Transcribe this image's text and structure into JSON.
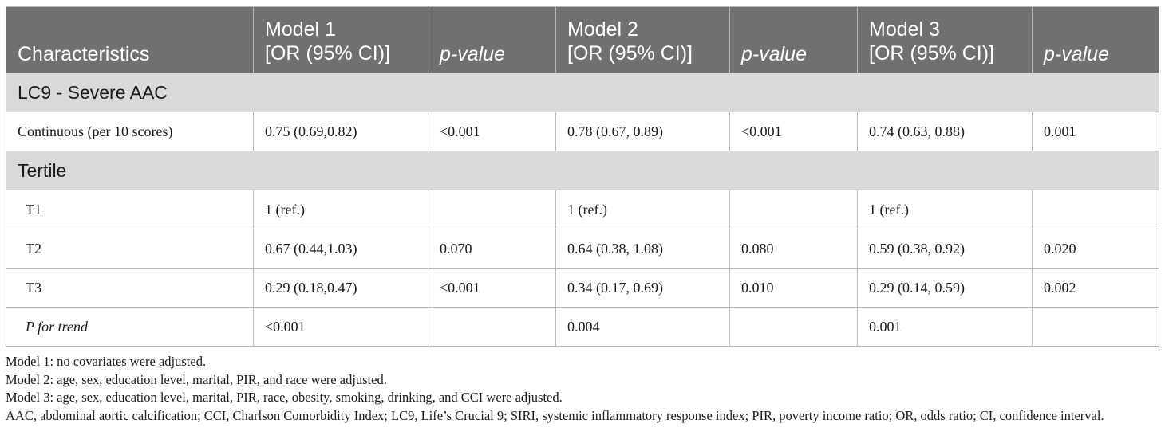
{
  "table": {
    "headers": {
      "characteristics": "Characteristics",
      "model1": {
        "line1": "Model 1",
        "line2": "[OR (95% CI)]"
      },
      "model2": {
        "line1": "Model 2",
        "line2": "[OR (95% CI)]"
      },
      "model3": {
        "line1": "Model 3",
        "line2": "[OR (95% CI)]"
      },
      "pvalue": "p-value"
    },
    "sections": [
      {
        "title": "LC9 - Severe AAC"
      },
      {
        "title": "Tertile"
      }
    ],
    "rows": [
      {
        "label": "Continuous (per 10 scores)",
        "m1_or": "0.75 (0.69,0.82)",
        "m1_p": "<0.001",
        "m2_or": "0.78 (0.67, 0.89)",
        "m2_p": "<0.001",
        "m3_or": "0.74 (0.63, 0.88)",
        "m3_p": "0.001"
      },
      {
        "label": "T1",
        "m1_or": "1 (ref.)",
        "m1_p": "",
        "m2_or": "1 (ref.)",
        "m2_p": "",
        "m3_or": "1 (ref.)",
        "m3_p": ""
      },
      {
        "label": "T2",
        "m1_or": "0.67 (0.44,1.03)",
        "m1_p": "0.070",
        "m2_or": "0.64 (0.38, 1.08)",
        "m2_p": "0.080",
        "m3_or": "0.59 (0.38, 0.92)",
        "m3_p": "0.020"
      },
      {
        "label": "T3",
        "m1_or": "0.29 (0.18,0.47)",
        "m1_p": "<0.001",
        "m2_or": "0.34 (0.17, 0.69)",
        "m2_p": "0.010",
        "m3_or": "0.29 (0.14, 0.59)",
        "m3_p": "0.002"
      },
      {
        "label": "P for trend",
        "m1_or": "<0.001",
        "m1_p": "",
        "m2_or": "0.004",
        "m2_p": "",
        "m3_or": "0.001",
        "m3_p": ""
      }
    ]
  },
  "notes": [
    "Model 1: no covariates were adjusted.",
    "Model 2: age, sex, education level, marital, PIR, and race were adjusted.",
    "Model 3: age, sex, education level, marital, PIR, race, obesity, smoking, drinking, and CCI were adjusted.",
    "AAC, abdominal aortic calcification; CCI, Charlson Comorbidity Index; LC9, Life’s Crucial 9; SIRI, systemic inflammatory response index; PIR, poverty income ratio; OR, odds ratio; CI, confidence interval."
  ],
  "colors": {
    "header_bg": "#707073",
    "section_bg": "#d9d9d9",
    "border": "#b8b8b8"
  }
}
